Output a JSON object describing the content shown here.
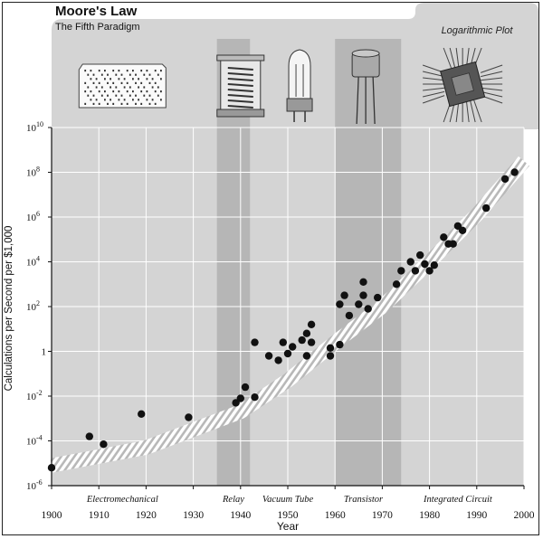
{
  "chart_data": {
    "type": "scatter",
    "title": "Moore's Law",
    "subtitle": "The Fifth Paradigm",
    "scale_note": "Logarithmic Plot",
    "xlabel": "Year",
    "ylabel": "Calculations per Second per $1,000",
    "xlim": [
      1900,
      2000
    ],
    "ylim": [
      -6,
      10
    ],
    "y_scale": "log10",
    "x_ticks": [
      1900,
      1910,
      1920,
      1930,
      1940,
      1950,
      1960,
      1970,
      1980,
      1990,
      2000
    ],
    "y_ticks": [
      {
        "exp": 10,
        "base": "10",
        "sup": "10"
      },
      {
        "exp": 8,
        "base": "10",
        "sup": "8"
      },
      {
        "exp": 6,
        "base": "10",
        "sup": "6"
      },
      {
        "exp": 4,
        "base": "10",
        "sup": "4"
      },
      {
        "exp": 2,
        "base": "10",
        "sup": "2"
      },
      {
        "exp": 0,
        "base": "1",
        "sup": ""
      },
      {
        "exp": -2,
        "base": "10",
        "sup": "-2"
      },
      {
        "exp": -4,
        "base": "10",
        "sup": "-4"
      },
      {
        "exp": -6,
        "base": "10",
        "sup": "-6"
      }
    ],
    "grid": true,
    "eras": [
      {
        "label": "Electromechanical",
        "start": 1900,
        "end": 1935,
        "shaded": false,
        "label_x": 1915
      },
      {
        "label": "Relay",
        "start": 1935,
        "end": 1942,
        "shaded": true,
        "label_x": 1938.5
      },
      {
        "label": "Vacuum Tube",
        "start": 1942,
        "end": 1960,
        "shaded": false,
        "label_x": 1950
      },
      {
        "label": "Transistor",
        "start": 1960,
        "end": 1974,
        "shaded": true,
        "label_x": 1966
      },
      {
        "label": "Integrated Circuit",
        "start": 1974,
        "end": 2000,
        "shaded": false,
        "label_x": 1986
      }
    ],
    "trend": {
      "x": [
        1900,
        1920,
        1940,
        1950,
        1960,
        1970,
        1980,
        1990,
        2000
      ],
      "y": [
        -5.1,
        -4.3,
        -2.7,
        -1.3,
        0.4,
        2.0,
        4.0,
        6.1,
        8.5
      ]
    },
    "points": [
      {
        "x": 1900,
        "y": -5.2
      },
      {
        "x": 1908,
        "y": -3.8
      },
      {
        "x": 1911,
        "y": -4.15
      },
      {
        "x": 1919,
        "y": -2.8
      },
      {
        "x": 1929,
        "y": -2.95
      },
      {
        "x": 1939,
        "y": -2.3
      },
      {
        "x": 1940,
        "y": -2.1
      },
      {
        "x": 1941,
        "y": -1.6
      },
      {
        "x": 1943,
        "y": -2.05
      },
      {
        "x": 1943,
        "y": 0.4
      },
      {
        "x": 1946,
        "y": -0.2
      },
      {
        "x": 1948,
        "y": -0.4
      },
      {
        "x": 1949,
        "y": 0.4
      },
      {
        "x": 1950,
        "y": -0.1
      },
      {
        "x": 1951,
        "y": 0.2
      },
      {
        "x": 1953,
        "y": 0.5
      },
      {
        "x": 1954,
        "y": 0.8
      },
      {
        "x": 1954,
        "y": -0.2
      },
      {
        "x": 1955,
        "y": 0.4
      },
      {
        "x": 1955,
        "y": 1.2
      },
      {
        "x": 1959,
        "y": -0.2
      },
      {
        "x": 1959,
        "y": 0.15
      },
      {
        "x": 1961,
        "y": 0.3
      },
      {
        "x": 1961,
        "y": 2.1
      },
      {
        "x": 1962,
        "y": 2.5
      },
      {
        "x": 1963,
        "y": 1.6
      },
      {
        "x": 1965,
        "y": 2.1
      },
      {
        "x": 1966,
        "y": 2.5
      },
      {
        "x": 1966,
        "y": 3.1
      },
      {
        "x": 1967,
        "y": 1.9
      },
      {
        "x": 1969,
        "y": 2.4
      },
      {
        "x": 1973,
        "y": 3.0
      },
      {
        "x": 1974,
        "y": 3.6
      },
      {
        "x": 1976,
        "y": 4.0
      },
      {
        "x": 1977,
        "y": 3.6
      },
      {
        "x": 1978,
        "y": 4.3
      },
      {
        "x": 1979,
        "y": 3.9
      },
      {
        "x": 1980,
        "y": 3.6
      },
      {
        "x": 1981,
        "y": 3.85
      },
      {
        "x": 1983,
        "y": 5.1
      },
      {
        "x": 1984,
        "y": 4.8
      },
      {
        "x": 1985,
        "y": 4.8
      },
      {
        "x": 1986,
        "y": 5.6
      },
      {
        "x": 1987,
        "y": 5.4
      },
      {
        "x": 1992,
        "y": 6.4
      },
      {
        "x": 1996,
        "y": 7.7
      },
      {
        "x": 1998,
        "y": 8.0
      }
    ]
  },
  "colors": {
    "panel": "#d4d4d4",
    "shade": "#b6b6b6",
    "grid": "#ffffff",
    "point": "#111111",
    "trend": "#f2f2f2"
  },
  "icons": [
    {
      "name": "punch-card-icon",
      "x": 1915
    },
    {
      "name": "relay-icon",
      "x": 1940
    },
    {
      "name": "vacuum-tube-icon",
      "x": 1952.5
    },
    {
      "name": "transistor-icon",
      "x": 1966.5
    },
    {
      "name": "integrated-circuit-icon",
      "x": 1987
    }
  ]
}
